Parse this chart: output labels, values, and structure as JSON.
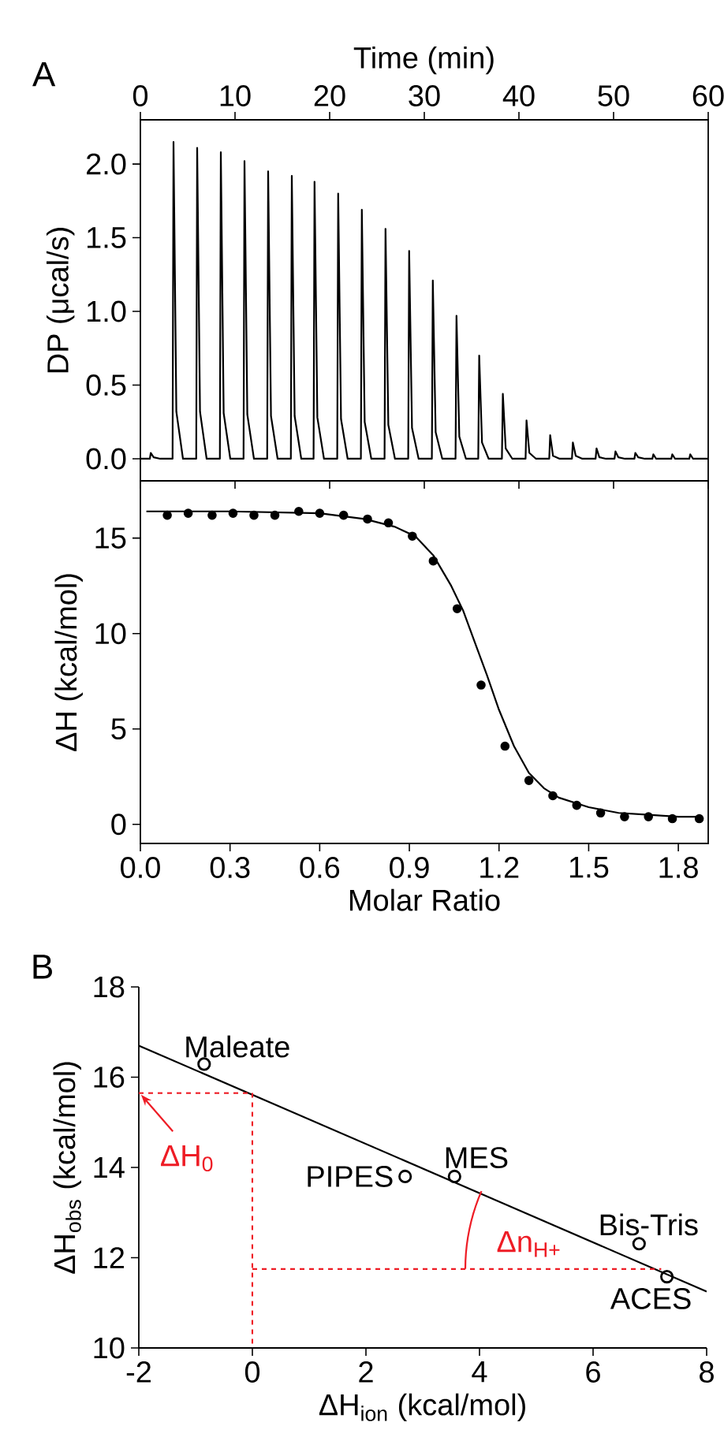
{
  "chart_data": [
    {
      "type": "line",
      "title": "A",
      "xlabel": "Time (min)",
      "ylabel": "DP (μcal/s)",
      "xlim": [
        0,
        60
      ],
      "xticks": [
        0,
        10,
        20,
        30,
        40,
        50,
        60
      ],
      "ylim": [
        -0.15,
        2.3
      ],
      "yticks": [
        {
          "value": 0,
          "label": "0.0"
        },
        0.5,
        {
          "value": 1,
          "label": "1.0"
        },
        1.5,
        {
          "value": 2,
          "label": "2.0"
        }
      ],
      "series": [
        {
          "color": "#000000",
          "x": [
            0,
            1.0,
            1.1,
            1.4,
            2.1,
            3.4,
            3.5,
            3.8,
            4.5,
            5.9,
            6.0,
            6.3,
            7.0,
            8.4,
            8.5,
            8.8,
            9.5,
            10.9,
            11.0,
            11.3,
            12.0,
            13.4,
            13.5,
            13.8,
            14.5,
            15.9,
            16.0,
            16.3,
            17.0,
            18.3,
            18.4,
            18.7,
            19.4,
            20.8,
            20.9,
            21.2,
            21.9,
            23.3,
            23.4,
            23.7,
            24.4,
            25.8,
            25.9,
            26.2,
            26.9,
            28.3,
            28.4,
            28.7,
            29.4,
            30.8,
            30.9,
            31.2,
            31.9,
            33.3,
            33.4,
            33.7,
            34.4,
            35.7,
            35.8,
            36.1,
            36.8,
            38.2,
            38.3,
            38.6,
            39.3,
            40.7,
            40.8,
            41.1,
            41.8,
            43.2,
            43.3,
            43.6,
            44.3,
            45.6,
            45.7,
            46.0,
            46.7,
            48.1,
            48.2,
            48.5,
            49.2,
            50.1,
            50.2,
            50.5,
            51.2,
            52.2,
            52.3,
            52.6,
            53.3,
            54.1,
            54.2,
            54.5,
            55.2,
            56.1,
            56.2,
            56.5,
            57.2,
            58.0,
            58.1,
            58.4,
            59.1,
            60
          ],
          "values": [
            0,
            0,
            0.04,
            0.01,
            0,
            0,
            2.15,
            0.32,
            0,
            0,
            2.11,
            0.32,
            0,
            0,
            2.08,
            0.31,
            0,
            0,
            2.02,
            0.3,
            0,
            0,
            1.95,
            0.29,
            0,
            0,
            1.92,
            0.29,
            0,
            0,
            1.88,
            0.28,
            0,
            0,
            1.8,
            0.27,
            0,
            0,
            1.69,
            0.25,
            0,
            0,
            1.56,
            0.23,
            0,
            0,
            1.41,
            0.21,
            0,
            0,
            1.21,
            0.18,
            0,
            0,
            0.97,
            0.15,
            0,
            0,
            0.7,
            0.11,
            0,
            0,
            0.44,
            0.07,
            0,
            0,
            0.26,
            0.04,
            0,
            0,
            0.16,
            0.02,
            0,
            0,
            0.11,
            0.02,
            0,
            0,
            0.07,
            0.01,
            0,
            0,
            0.05,
            0.01,
            0,
            0,
            0.04,
            0.01,
            0,
            0,
            0.03,
            0,
            0,
            0,
            0.03,
            0,
            0,
            0,
            0.03,
            0,
            0,
            0
          ]
        }
      ]
    },
    {
      "type": "scatter",
      "xlabel": "Molar Ratio",
      "ylabel": "ΔH (kcal/mol)",
      "xlim": [
        0,
        1.9
      ],
      "xticks": [
        {
          "value": 0,
          "label": "0.0"
        },
        0.3,
        0.6,
        0.9,
        1.2,
        1.5,
        1.8
      ],
      "ylim": [
        -1,
        18
      ],
      "yticks": [
        0,
        5,
        10,
        15
      ],
      "series": [
        {
          "type": "scatter",
          "color": "#000000",
          "marker": "circle",
          "x": [
            0.09,
            0.16,
            0.24,
            0.31,
            0.38,
            0.45,
            0.53,
            0.6,
            0.68,
            0.76,
            0.83,
            0.91,
            0.98,
            1.06,
            1.14,
            1.22,
            1.3,
            1.38,
            1.46,
            1.54,
            1.62,
            1.7,
            1.78,
            1.87
          ],
          "values": [
            16.2,
            16.3,
            16.2,
            16.3,
            16.2,
            16.2,
            16.4,
            16.3,
            16.2,
            16.0,
            15.8,
            15.1,
            13.8,
            11.3,
            7.3,
            4.1,
            2.3,
            1.5,
            1.0,
            0.6,
            0.4,
            0.4,
            0.3,
            0.3
          ]
        },
        {
          "type": "line",
          "color": "#000000",
          "x": [
            0.02,
            0.3,
            0.6,
            0.75,
            0.85,
            0.92,
            0.98,
            1.04,
            1.08,
            1.12,
            1.16,
            1.2,
            1.25,
            1.3,
            1.35,
            1.4,
            1.5,
            1.6,
            1.7,
            1.8,
            1.88
          ],
          "values": [
            16.4,
            16.4,
            16.3,
            16.0,
            15.6,
            15.1,
            14.1,
            12.5,
            11.2,
            9.5,
            7.8,
            6.0,
            4.1,
            2.7,
            1.9,
            1.4,
            0.9,
            0.6,
            0.5,
            0.4,
            0.4
          ]
        }
      ]
    },
    {
      "type": "scatter",
      "title": "B",
      "xlabel": "ΔH$_{ion}$ (kcal/mol)",
      "ylabel": "ΔH$_{obs}$ (kcal/mol)",
      "xlim": [
        -2,
        8
      ],
      "xticks": [
        -2,
        0,
        2,
        4,
        6,
        8
      ],
      "ylim": [
        10,
        18
      ],
      "yticks": [
        10,
        12,
        14,
        16,
        18
      ],
      "annotations": [
        {
          "text": "Maleate",
          "x": -0.85,
          "y": 16.29
        },
        {
          "text": "PIPES",
          "x": 2.69,
          "y": 13.8
        },
        {
          "text": "MES",
          "x": 3.56,
          "y": 13.8
        },
        {
          "text": "Bis-Tris",
          "x": 6.81,
          "y": 12.31
        },
        {
          "text": "ACES",
          "x": 7.3,
          "y": 11.58
        }
      ],
      "series": [
        {
          "type": "scatter",
          "color": "#000000",
          "marker": "circle",
          "x": [
            -0.85,
            2.69,
            3.56,
            6.81,
            7.3
          ],
          "values": [
            16.29,
            13.8,
            13.8,
            12.31,
            11.58
          ]
        },
        {
          "type": "line",
          "color": "#000000",
          "x": [
            -2,
            8
          ],
          "values": [
            16.7,
            11.25
          ]
        },
        {
          "type": "line",
          "name": "ΔH$_{0}$",
          "color": "#ee1c25",
          "line_style": "dashed",
          "x": [
            -2,
            0,
            0
          ],
          "values": [
            15.65,
            15.65,
            10
          ]
        },
        {
          "type": "line",
          "name": "Δn$_{H+}$",
          "color": "#ee1c25",
          "line_style": "dashed",
          "x": [
            0,
            7.2
          ],
          "values": [
            11.75,
            11.75
          ]
        }
      ]
    }
  ]
}
